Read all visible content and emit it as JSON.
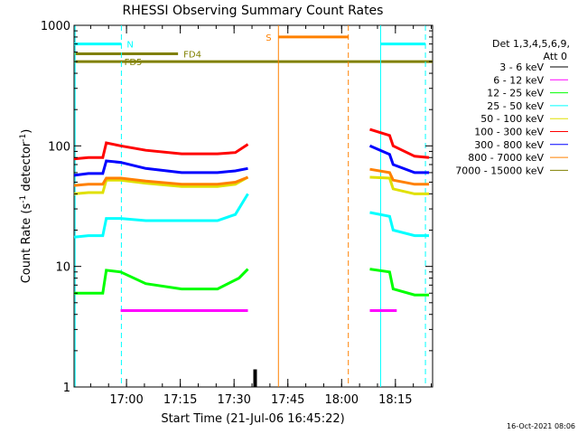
{
  "chart_data": {
    "type": "line",
    "title": "RHESSI Observing Summary Count Rates",
    "xlabel": "Start Time (21-Jul-06 16:45:22)",
    "ylabel_main": "Count Rate (s",
    "ylabel_sup1": "-1",
    "ylabel_mid": " detector",
    "ylabel_sup2": "-1",
    "ylabel_end": ")",
    "y_scale": "log",
    "ylim": [
      1,
      1000
    ],
    "xlim_minutes_from_start": [
      0,
      100
    ],
    "x_ticks": [
      {
        "label": "17:00",
        "minutes": 14.63
      },
      {
        "label": "17:15",
        "minutes": 29.63
      },
      {
        "label": "17:30",
        "minutes": 44.63
      },
      {
        "label": "17:45",
        "minutes": 59.63
      },
      {
        "label": "18:00",
        "minutes": 74.63
      },
      {
        "label": "18:15",
        "minutes": 89.63
      }
    ],
    "y_ticks": [
      {
        "label": "1",
        "value": 1
      },
      {
        "label": "10",
        "value": 10
      },
      {
        "label": "100",
        "value": 100
      },
      {
        "label": "1000",
        "value": 1000
      }
    ],
    "legend": {
      "header1": "Det 1,3,4,5,6,9,",
      "header2": "Att 0",
      "entries": [
        {
          "label": "3 - 6 keV",
          "color": "#000000"
        },
        {
          "label": "6 - 12 keV",
          "color": "#ff00ff"
        },
        {
          "label": "12 - 25 keV",
          "color": "#00ff00"
        },
        {
          "label": "25 - 50 keV",
          "color": "#00ffff"
        },
        {
          "label": "50 - 100 keV",
          "color": "#e0e000"
        },
        {
          "label": "100 - 300 keV",
          "color": "#ff0000"
        },
        {
          "label": "300 - 800 keV",
          "color": "#0000ff"
        },
        {
          "label": "800 - 7000 keV",
          "color": "#ff8000"
        },
        {
          "label": "7000 - 15000 keV",
          "color": "#808000"
        }
      ]
    },
    "series": [
      {
        "name": "6 - 12 keV",
        "color": "#ff00ff",
        "x": [
          13,
          20,
          30,
          40,
          48.5,
          82.5,
          85,
          89,
          90
        ],
        "y": [
          4.3,
          4.3,
          4.3,
          4.3,
          4.3,
          4.3,
          4.3,
          4.3,
          4.3
        ]
      },
      {
        "name": "12 - 25 keV",
        "color": "#00ff00",
        "x": [
          0,
          8,
          9,
          13,
          20,
          30,
          40,
          46,
          48.5,
          82.5,
          88,
          89,
          95,
          99
        ],
        "y": [
          6.0,
          6.0,
          9.3,
          9.0,
          7.2,
          6.5,
          6.5,
          8.0,
          9.5,
          9.5,
          9.0,
          6.5,
          5.8,
          5.8
        ]
      },
      {
        "name": "25 - 50 keV",
        "color": "#00ffff",
        "x": [
          0,
          4,
          8,
          9,
          13,
          20,
          30,
          40,
          45,
          48.5,
          82.5,
          88,
          89,
          95,
          99
        ],
        "y": [
          17.5,
          18,
          18,
          25,
          25,
          24,
          24,
          24,
          27,
          40,
          28,
          26,
          20,
          18,
          18
        ]
      },
      {
        "name": "50 - 100 keV",
        "color": "#e0e000",
        "x": [
          0,
          4,
          8,
          9,
          13,
          20,
          30,
          40,
          45,
          48.5,
          82.5,
          88,
          89,
          95,
          99
        ],
        "y": [
          40,
          41,
          41,
          52,
          52,
          49,
          46,
          46,
          48,
          55,
          55,
          54,
          44,
          40,
          40
        ]
      },
      {
        "name": "800 - 7000 keV",
        "color": "#ff8000",
        "x": [
          0,
          4,
          8,
          9,
          13,
          20,
          30,
          40,
          45,
          48.5,
          82.5,
          88,
          89,
          95,
          99
        ],
        "y": [
          47,
          48,
          48,
          54,
          54,
          51,
          48,
          48,
          50,
          55,
          64,
          60,
          52,
          48,
          48
        ]
      },
      {
        "name": "300 - 800 keV",
        "color": "#0000ff",
        "x": [
          0,
          4,
          8,
          9,
          13,
          20,
          30,
          40,
          45,
          48.5,
          82.5,
          88,
          89,
          95,
          99
        ],
        "y": [
          57,
          59,
          59,
          75,
          73,
          65,
          60,
          60,
          62,
          65,
          100,
          85,
          70,
          60,
          60
        ]
      },
      {
        "name": "100 - 300 keV",
        "color": "#ff0000",
        "x": [
          0,
          4,
          8,
          9,
          13,
          20,
          30,
          40,
          45,
          48.5,
          82.5,
          88,
          89,
          95,
          99
        ],
        "y": [
          78,
          80,
          80,
          106,
          100,
          92,
          86,
          86,
          88,
          103,
          137,
          122,
          100,
          82,
          80
        ]
      },
      {
        "name": "3 - 6 keV",
        "color": "#000000",
        "x": [
          50,
          50
        ],
        "y": [
          1,
          1
        ]
      }
    ],
    "flags": [
      {
        "label": "N",
        "color": "#00ffff",
        "start": 0,
        "end": 13.2,
        "y": 700,
        "label_at": "end",
        "dash_at": [
          13.2
        ]
      },
      {
        "label": "FD4",
        "color": "#808000",
        "start": 0,
        "end": 29,
        "y": 580,
        "label_at": "end",
        "dash_at": []
      },
      {
        "label": "FD5",
        "color": "#808000",
        "start": 0,
        "end": 100,
        "y": 500,
        "label_at": "start_offset",
        "dash_at": []
      },
      {
        "label": "S",
        "color": "#ff8000",
        "start": 57,
        "end": 76.5,
        "y": 800,
        "label_at": "start",
        "dash_at": [
          76.5
        ]
      },
      {
        "label": "N",
        "color": "#00ffff",
        "start": 85.5,
        "end": 98,
        "y": 700,
        "label_at": "none",
        "dash_at": [
          98
        ]
      }
    ],
    "vlines": [
      {
        "x": 0.3,
        "color": "#00ffff",
        "style": "solid"
      },
      {
        "x": 13.2,
        "color": "#00ffff",
        "style": "dashed"
      },
      {
        "x": 57,
        "color": "#ff8000",
        "style": "solid"
      },
      {
        "x": 76.5,
        "color": "#ff8000",
        "style": "dashed"
      },
      {
        "x": 85.5,
        "color": "#00ffff",
        "style": "solid"
      },
      {
        "x": 98,
        "color": "#00ffff",
        "style": "dashed"
      }
    ],
    "black_bar": {
      "x_start": 50,
      "x_end": 51,
      "y_top": 1.4
    },
    "footer_date": "16-Oct-2021 08:06"
  }
}
